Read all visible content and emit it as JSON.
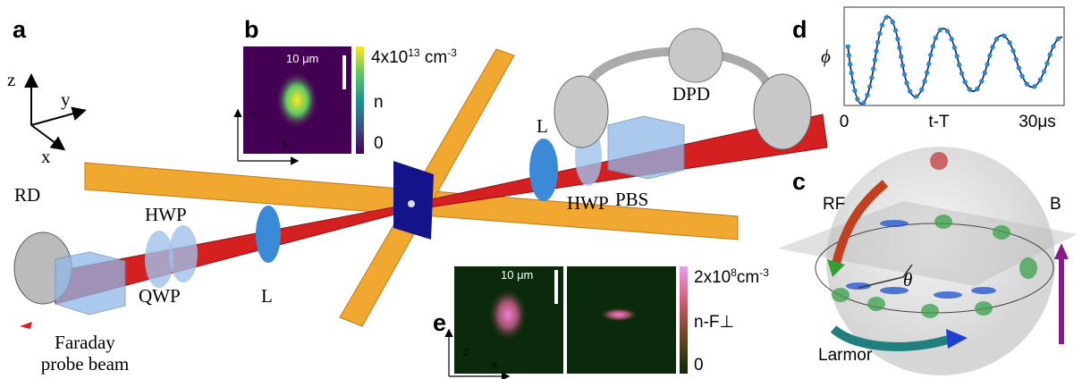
{
  "panel_a": {
    "label": "a",
    "axes": [
      "z",
      "y",
      "x"
    ],
    "left": {
      "rd": "RD",
      "hwp": "HWP",
      "qwp": "QWP",
      "lens": "L",
      "beam": [
        "Faraday",
        "probe beam"
      ]
    },
    "right": {
      "dpd": "DPD",
      "lens": "L",
      "hwp": "HWP",
      "pbs": "PBS"
    }
  },
  "panel_b": {
    "label": "b",
    "scale": "10 μm",
    "cbar_max": {
      "base": "4x10",
      "exp": "13",
      "unit": " cm",
      "unit_exp": "-3"
    },
    "cbar_name": "n",
    "cbar_min": "0",
    "axes": [
      "z",
      "x"
    ]
  },
  "panel_c": {
    "label": "c",
    "rf": "RF",
    "b": "B",
    "theta": "θ",
    "larmor": "Larmor"
  },
  "panel_d": {
    "label": "d",
    "ylabel": "ϕ",
    "xlabels": [
      "0",
      "t-T",
      "30μs"
    ]
  },
  "panel_e": {
    "label": "e",
    "scale": "10 μm",
    "cbar_max": {
      "base": "2x10",
      "exp": "8",
      "unit": "cm",
      "unit_exp": "-3"
    },
    "cbar_name": "n-F⊥",
    "cbar_min": "0",
    "axes": [
      "z",
      "x"
    ]
  }
}
